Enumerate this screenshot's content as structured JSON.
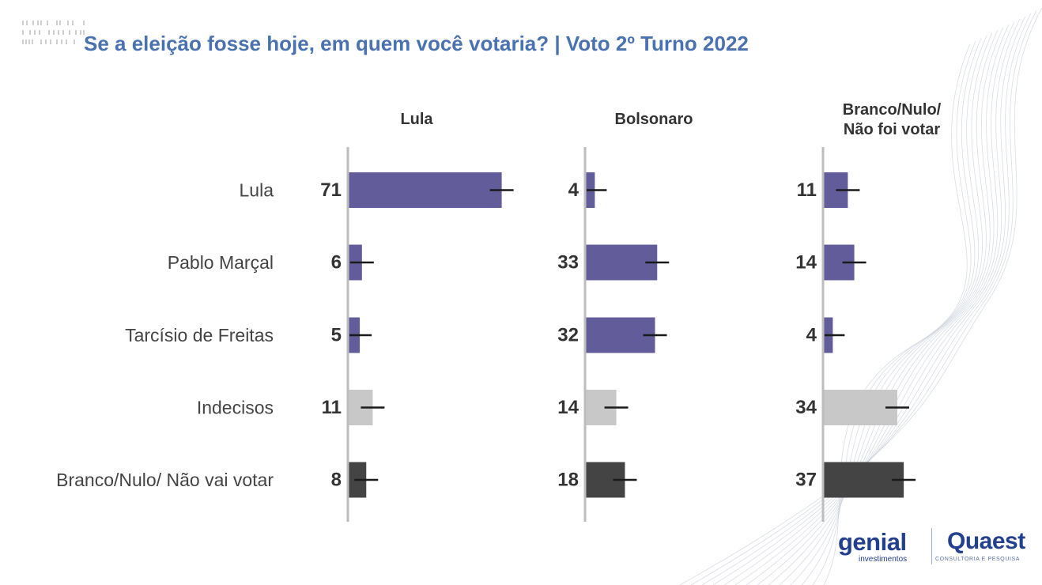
{
  "page": {
    "title": "Se a eleição fosse hoje, em quem você votaria? | Voto 2º Turno 2022"
  },
  "colors": {
    "title": "#4a72b0",
    "candidate_bar": "#635c9a",
    "undecided_bar": "#c8c8c8",
    "blank_bar": "#444444",
    "error_bar": "#1a1a1a",
    "axis_line": "#bdbdbd",
    "value_text": "#333333",
    "label_text": "#444444"
  },
  "chart_data": {
    "type": "bar",
    "orientation": "horizontal",
    "categories": [
      "Lula",
      "Pablo Marçal",
      "Tarcísio de Freitas",
      "Indecisos",
      "Branco/Nulo/ Não vai votar"
    ],
    "category_colors": [
      "candidate_bar",
      "candidate_bar",
      "candidate_bar",
      "undecided_bar",
      "blank_bar"
    ],
    "panels": [
      {
        "title_lines": [
          "Lula"
        ],
        "values": [
          71,
          6,
          5,
          11,
          8
        ]
      },
      {
        "title_lines": [
          "Bolsonaro"
        ],
        "values": [
          4,
          33,
          32,
          14,
          18
        ]
      },
      {
        "title_lines": [
          "Branco/Nulo/",
          "Não foi votar"
        ],
        "values": [
          11,
          14,
          4,
          34,
          37
        ]
      }
    ],
    "xlim": [
      0,
      100
    ],
    "grid": false,
    "legend": "none"
  },
  "logos": {
    "genial": {
      "name": "genial",
      "subtitle": "investimentos"
    },
    "quaest": {
      "name": "Quaest",
      "subtitle": "CONSULTORIA E PESQUISA"
    }
  }
}
